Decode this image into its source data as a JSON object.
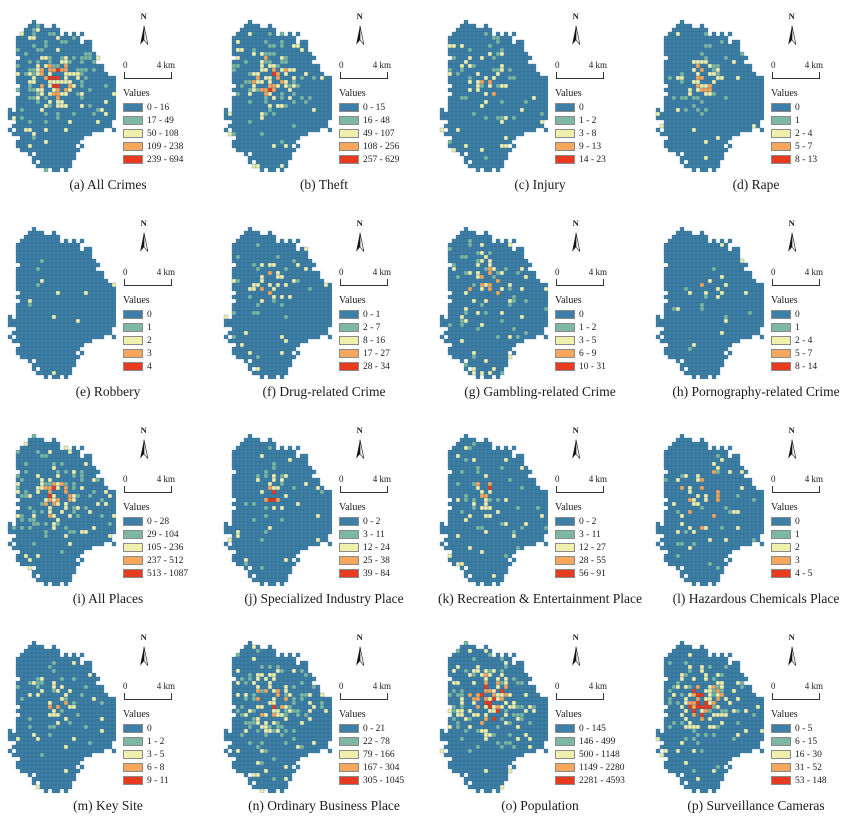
{
  "figure": {
    "north_label": "N",
    "legend_title": "Values",
    "scale_zero": "0",
    "scale_max": "4 km",
    "class_colors": [
      "#3E7FA7",
      "#7CB8A4",
      "#F1EFAE",
      "#F7A65C",
      "#E73A1E"
    ],
    "grid_line_color": "#2D6285"
  },
  "panels": [
    {
      "id": "a",
      "caption": "(a) All Crimes",
      "legend": [
        "0 - 16",
        "17 - 49",
        "50 - 108",
        "109 - 238",
        "239 - 694"
      ],
      "map": {
        "density": 0.95,
        "spread": 0.34,
        "core": 0.35,
        "seed": 1
      }
    },
    {
      "id": "b",
      "caption": "(b) Theft",
      "legend": [
        "0 - 15",
        "16 - 48",
        "49 - 107",
        "108 - 256",
        "257 - 629"
      ],
      "map": {
        "density": 0.9,
        "spread": 0.33,
        "core": 0.35,
        "seed": 2
      }
    },
    {
      "id": "c",
      "caption": "(c) Injury",
      "legend": [
        "0",
        "1 - 2",
        "3 - 8",
        "9 - 13",
        "14 - 23"
      ],
      "map": {
        "density": 0.5,
        "spread": 0.34,
        "core": 0.15,
        "seed": 3
      }
    },
    {
      "id": "d",
      "caption": "(d) Rape",
      "legend": [
        "0",
        "1",
        "2 - 4",
        "5 - 7",
        "8 - 13"
      ],
      "map": {
        "density": 0.45,
        "spread": 0.3,
        "core": 0.12,
        "seed": 4
      }
    },
    {
      "id": "e",
      "caption": "(e) Robbery",
      "legend": [
        "0",
        "1",
        "2",
        "3",
        "4"
      ],
      "map": {
        "density": 0.15,
        "spread": 0.2,
        "core": 0.3,
        "seed": 5
      }
    },
    {
      "id": "f",
      "caption": "(f) Drug-related Crime",
      "legend": [
        "0 - 1",
        "2 - 7",
        "8 - 16",
        "17 - 27",
        "28 - 34"
      ],
      "map": {
        "density": 0.42,
        "spread": 0.3,
        "core": 0.3,
        "seed": 6
      }
    },
    {
      "id": "g",
      "caption": "(g) Gambling-related Crime",
      "legend": [
        "0",
        "1 - 2",
        "3 - 5",
        "6 - 9",
        "10 - 31"
      ],
      "map": {
        "density": 0.55,
        "spread": 0.36,
        "core": 0.2,
        "seed": 7
      }
    },
    {
      "id": "h",
      "caption": "(h) Pornography-related Crime",
      "legend": [
        "0",
        "1",
        "2 - 4",
        "5 - 7",
        "8 - 14"
      ],
      "map": {
        "density": 0.25,
        "spread": 0.2,
        "core": 0.3,
        "seed": 8
      }
    },
    {
      "id": "i",
      "caption": "(i) All Places",
      "legend": [
        "0 - 28",
        "29 - 104",
        "105 - 236",
        "237 - 512",
        "513 - 1087"
      ],
      "map": {
        "density": 0.85,
        "spread": 0.36,
        "core": 0.3,
        "seed": 9
      }
    },
    {
      "id": "j",
      "caption": "(j) Specialized Industry Place",
      "legend": [
        "0 - 2",
        "3 - 11",
        "12 - 24",
        "25 - 38",
        "39 - 84"
      ],
      "map": {
        "density": 0.5,
        "spread": 0.24,
        "core": 0.45,
        "seed": 10
      }
    },
    {
      "id": "k",
      "caption": "(k) Recreation & Entertainment Place",
      "legend": [
        "0 - 2",
        "3 - 11",
        "12 - 27",
        "28 - 55",
        "56 - 91"
      ],
      "map": {
        "density": 0.6,
        "spread": 0.24,
        "core": 0.45,
        "seed": 11
      }
    },
    {
      "id": "l",
      "caption": "(l) Hazardous Chemicals Place",
      "legend": [
        "0",
        "1",
        "2",
        "3",
        "4 - 5"
      ],
      "map": {
        "density": 0.22,
        "spread": 0.6,
        "core": 0.15,
        "seed": 12
      }
    },
    {
      "id": "m",
      "caption": "(m) Key Site",
      "legend": [
        "0",
        "1 - 2",
        "3 - 5",
        "6 - 8",
        "9 - 11"
      ],
      "map": {
        "density": 0.55,
        "spread": 0.3,
        "core": 0.3,
        "seed": 13
      }
    },
    {
      "id": "n",
      "caption": "(n) Ordinary Business Place",
      "legend": [
        "0 - 21",
        "22 - 78",
        "79 - 166",
        "167 - 304",
        "305 - 1045"
      ],
      "map": {
        "density": 0.85,
        "spread": 0.34,
        "core": 0.35,
        "seed": 14
      }
    },
    {
      "id": "o",
      "caption": "(o) Population",
      "legend": [
        "0 - 145",
        "146 - 499",
        "500 - 1148",
        "1149 - 2280",
        "2281 - 4593"
      ],
      "map": {
        "density": 0.95,
        "spread": 0.36,
        "core": 0.8,
        "seed": 15
      }
    },
    {
      "id": "p",
      "caption": "(p) Surveillance Cameras",
      "legend": [
        "0 - 5",
        "6 - 15",
        "16 - 30",
        "31 - 52",
        "53 - 148"
      ],
      "map": {
        "density": 0.9,
        "spread": 0.34,
        "core": 0.6,
        "seed": 16
      }
    }
  ]
}
